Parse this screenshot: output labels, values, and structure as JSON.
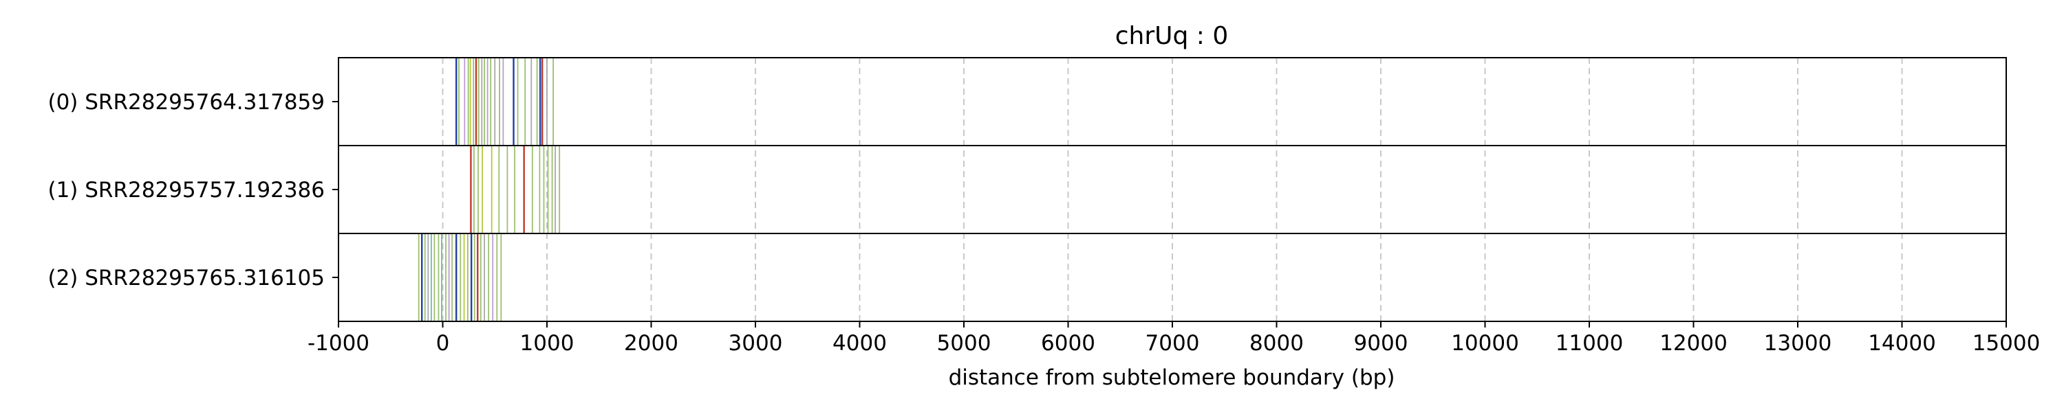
{
  "chart_data": {
    "type": "read-track",
    "title": "chrUq : 0",
    "xlabel": "distance from subtelomere boundary (bp)",
    "xlim": [
      -1000,
      15000
    ],
    "xticks": [
      -1000,
      0,
      1000,
      2000,
      3000,
      4000,
      5000,
      6000,
      7000,
      8000,
      9000,
      10000,
      11000,
      12000,
      13000,
      14000,
      15000
    ],
    "grid": "vertical dashed",
    "colors": {
      "blue": "#1f3fa8",
      "red": "#c0392b",
      "green": "#9cbf6e",
      "lime": "#b5c93a",
      "purple": "#b79fd0",
      "gray": "#a8a8a8",
      "teal": "#6fb8b0"
    },
    "tracks": [
      {
        "label": "(0) SRR28295764.317859",
        "marks": [
          {
            "x": 130,
            "c": "blue"
          },
          {
            "x": 155,
            "c": "green"
          },
          {
            "x": 210,
            "c": "purple"
          },
          {
            "x": 245,
            "c": "green"
          },
          {
            "x": 265,
            "c": "lime"
          },
          {
            "x": 295,
            "c": "green"
          },
          {
            "x": 320,
            "c": "red"
          },
          {
            "x": 345,
            "c": "green"
          },
          {
            "x": 375,
            "c": "gray"
          },
          {
            "x": 400,
            "c": "green"
          },
          {
            "x": 430,
            "c": "purple"
          },
          {
            "x": 460,
            "c": "green"
          },
          {
            "x": 500,
            "c": "gray"
          },
          {
            "x": 545,
            "c": "green"
          },
          {
            "x": 580,
            "c": "purple"
          },
          {
            "x": 680,
            "c": "blue"
          },
          {
            "x": 720,
            "c": "green"
          },
          {
            "x": 790,
            "c": "green"
          },
          {
            "x": 850,
            "c": "gray"
          },
          {
            "x": 905,
            "c": "green"
          },
          {
            "x": 935,
            "c": "blue"
          },
          {
            "x": 955,
            "c": "red"
          },
          {
            "x": 1000,
            "c": "gray"
          },
          {
            "x": 1060,
            "c": "green"
          }
        ]
      },
      {
        "label": "(1) SRR28295757.192386",
        "marks": [
          {
            "x": 270,
            "c": "red"
          },
          {
            "x": 300,
            "c": "green"
          },
          {
            "x": 340,
            "c": "green"
          },
          {
            "x": 380,
            "c": "lime"
          },
          {
            "x": 470,
            "c": "lime"
          },
          {
            "x": 540,
            "c": "green"
          },
          {
            "x": 620,
            "c": "green"
          },
          {
            "x": 690,
            "c": "green"
          },
          {
            "x": 780,
            "c": "red"
          },
          {
            "x": 860,
            "c": "green"
          },
          {
            "x": 930,
            "c": "green"
          },
          {
            "x": 970,
            "c": "green"
          },
          {
            "x": 1010,
            "c": "green"
          },
          {
            "x": 1050,
            "c": "green"
          },
          {
            "x": 1080,
            "c": "gray"
          },
          {
            "x": 1120,
            "c": "green"
          }
        ]
      },
      {
        "label": "(2) SRR28295765.316105",
        "marks": [
          {
            "x": -230,
            "c": "green"
          },
          {
            "x": -200,
            "c": "blue"
          },
          {
            "x": -170,
            "c": "green"
          },
          {
            "x": -140,
            "c": "gray"
          },
          {
            "x": -110,
            "c": "teal"
          },
          {
            "x": -80,
            "c": "green"
          },
          {
            "x": -40,
            "c": "green"
          },
          {
            "x": -10,
            "c": "teal"
          },
          {
            "x": 30,
            "c": "green"
          },
          {
            "x": 60,
            "c": "purple"
          },
          {
            "x": 90,
            "c": "green"
          },
          {
            "x": 130,
            "c": "blue"
          },
          {
            "x": 170,
            "c": "green"
          },
          {
            "x": 205,
            "c": "lime"
          },
          {
            "x": 240,
            "c": "green"
          },
          {
            "x": 275,
            "c": "blue"
          },
          {
            "x": 305,
            "c": "green"
          },
          {
            "x": 335,
            "c": "red"
          },
          {
            "x": 365,
            "c": "green"
          },
          {
            "x": 400,
            "c": "gray"
          },
          {
            "x": 440,
            "c": "green"
          },
          {
            "x": 480,
            "c": "purple"
          },
          {
            "x": 520,
            "c": "green"
          },
          {
            "x": 560,
            "c": "green"
          }
        ]
      }
    ]
  }
}
